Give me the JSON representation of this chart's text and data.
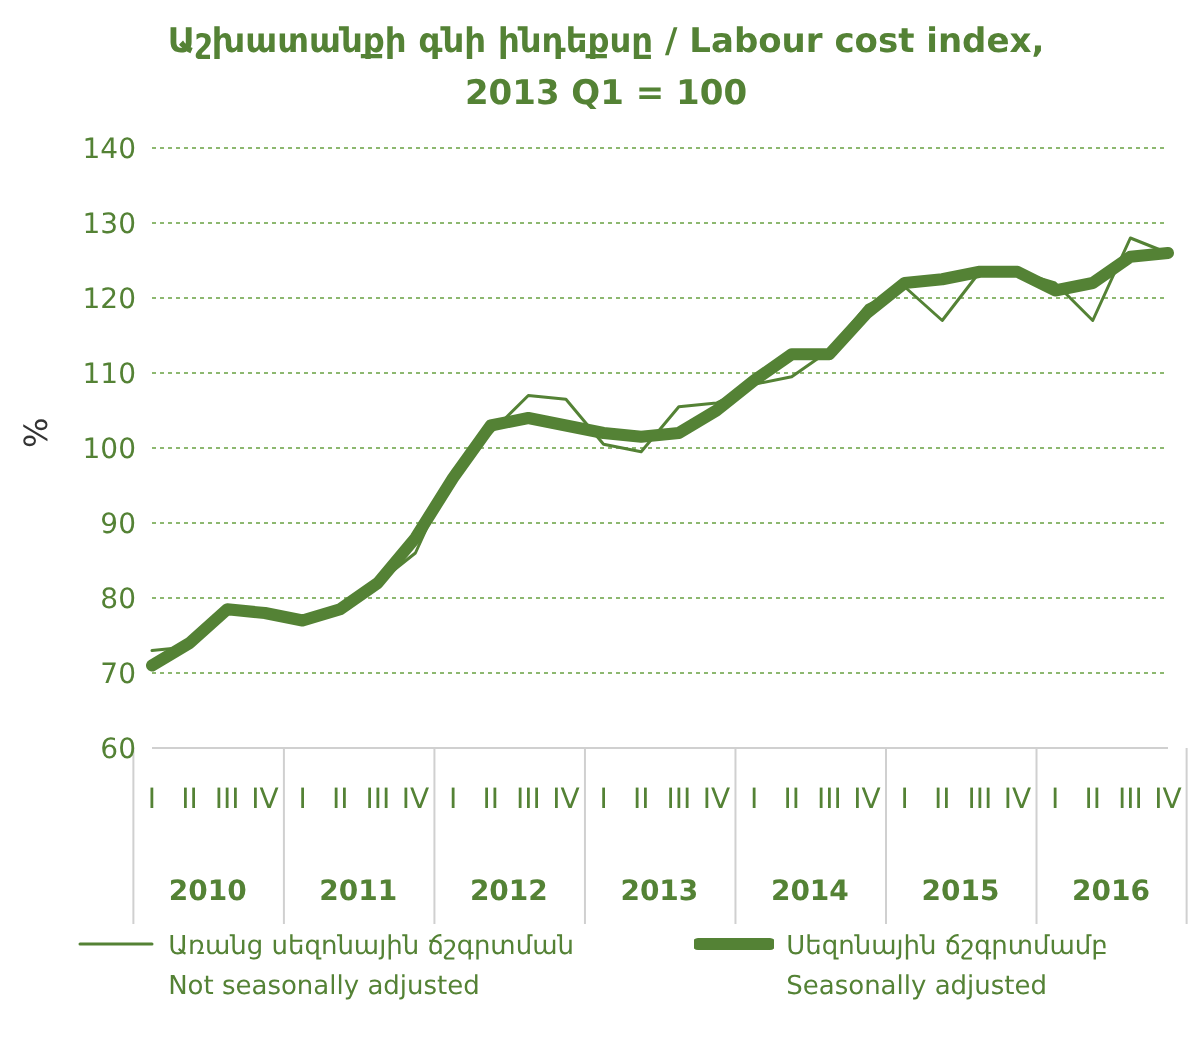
{
  "chart_data": {
    "type": "line",
    "title": "Աշխատանքի գնի ինդեքսը / Labour cost index,\n2013 Q1 = 100",
    "ylabel": "%",
    "categories": [
      "I",
      "II",
      "III",
      "IV",
      "I",
      "II",
      "III",
      "IV",
      "I",
      "II",
      "III",
      "IV",
      "I",
      "II",
      "III",
      "IV",
      "I",
      "II",
      "III",
      "IV",
      "I",
      "II",
      "III",
      "IV",
      "I",
      "II",
      "III",
      "IV"
    ],
    "annotations": [
      "2010",
      "2011",
      "2012",
      "2013",
      "2014",
      "2015",
      "2016"
    ],
    "series": [
      {
        "name": "Առանց սեզոնային ճշգրտման\nNot seasonally adjusted",
        "color": "#548235",
        "values": [
          73,
          73.5,
          79,
          78,
          77,
          78,
          82,
          86,
          97,
          102,
          107,
          106.5,
          100.5,
          99.5,
          105.5,
          106,
          108.5,
          109.5,
          113,
          119,
          121.5,
          117,
          123.5,
          123.5,
          122,
          117,
          128,
          126
        ]
      },
      {
        "name": "Սեզոնային ճշգրտմամբ\nSeasonally adjusted",
        "color": "#548235",
        "values": [
          71,
          74,
          78.5,
          78,
          77,
          78.5,
          82,
          88,
          96,
          103,
          104,
          103,
          102,
          101.5,
          102,
          105,
          109,
          112.5,
          112.5,
          118,
          122,
          122.5,
          123.5,
          123.5,
          121,
          122,
          125.5,
          126
        ]
      }
    ],
    "ylim": [
      60,
      140
    ],
    "yticks": [
      60,
      70,
      80,
      90,
      100,
      110,
      120,
      130,
      140
    ],
    "grid": "y",
    "legend": "bottom",
    "marker": "none",
    "line_style": "solid"
  }
}
